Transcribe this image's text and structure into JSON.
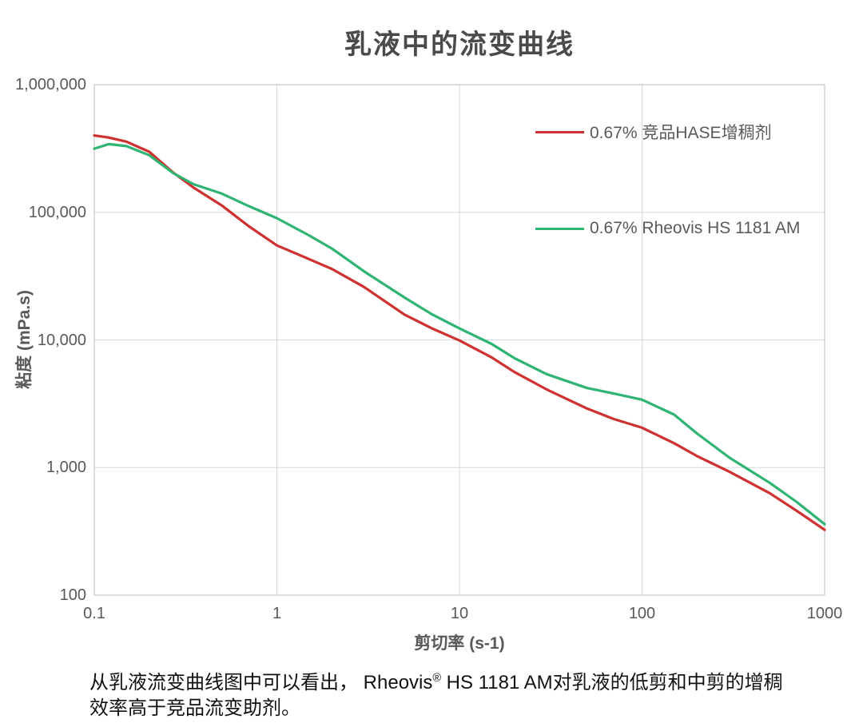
{
  "page": {
    "title": "乳液中的流变曲线",
    "caption": {
      "part1": "从乳液流变曲线图中可以看出， Rheovis",
      "reg_mark": "®",
      "part2": " HS 1181 AM对乳液的低剪和中剪的增稠",
      "line2": "效率高于竞品流变助剂。"
    }
  },
  "chart_data": {
    "type": "line",
    "title": "乳液中的流变曲线",
    "xlabel": "剪切率 (s-1)",
    "ylabel": "粘度 (mPa.s)",
    "x_scale": "log",
    "y_scale": "log",
    "xlim": [
      0.1,
      1000
    ],
    "ylim": [
      100,
      1000000
    ],
    "x_tick_values": [
      0.1,
      1,
      10,
      100,
      1000
    ],
    "x_tick_labels": [
      "0.1",
      "1",
      "10",
      "100",
      "1000"
    ],
    "y_tick_values": [
      100,
      1000,
      10000,
      100000,
      1000000
    ],
    "y_tick_labels": [
      "100",
      "1,000",
      "10,000",
      "100,000",
      "1,000,000"
    ],
    "grid": true,
    "legend_position": "inside upper right",
    "x": [
      0.1,
      0.12,
      0.15,
      0.2,
      0.27,
      0.35,
      0.5,
      0.7,
      1,
      1.5,
      2,
      3,
      5,
      7,
      10,
      15,
      20,
      30,
      50,
      70,
      100,
      150,
      200,
      300,
      500,
      700,
      1000
    ],
    "series": [
      {
        "name": "0.67% 竞品HASE增稠剂",
        "color": "#cf3130",
        "values": [
          400000,
          385000,
          358000,
          298000,
          205000,
          156000,
          113000,
          78000,
          55000,
          43000,
          36000,
          26000,
          15800,
          12400,
          9900,
          7300,
          5600,
          4100,
          2900,
          2400,
          2050,
          1550,
          1230,
          930,
          630,
          460,
          325
        ]
      },
      {
        "name": "0.67% Rheovis HS 1181 AM",
        "color": "#2fb474",
        "values": [
          315000,
          342000,
          330000,
          280000,
          203000,
          166000,
          140000,
          112000,
          90000,
          66000,
          52000,
          34500,
          21500,
          16000,
          12300,
          9300,
          7200,
          5400,
          4200,
          3800,
          3400,
          2600,
          1850,
          1200,
          760,
          540,
          360
        ]
      }
    ],
    "grid_color": "#d9d9d9",
    "border_color": "#c6c6c6"
  }
}
